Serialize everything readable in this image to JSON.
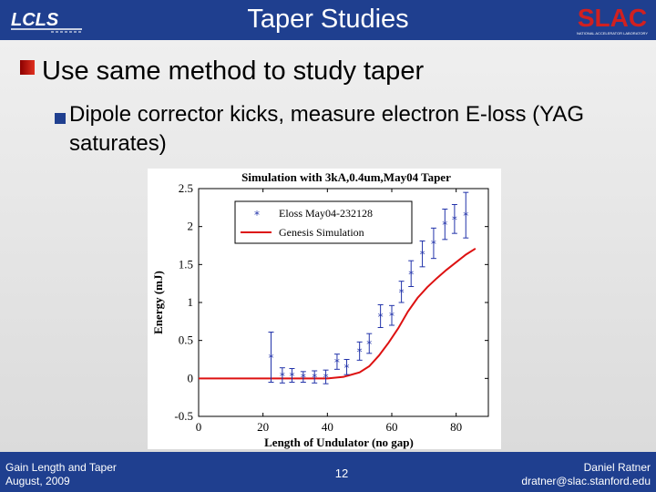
{
  "header": {
    "title": "Taper Studies",
    "logo_left": "LCLS",
    "logo_right": "SLAC",
    "logo_right_sub": "NATIONAL ACCELERATOR LABORATORY"
  },
  "body": {
    "bullet_main": "Use same method to study taper",
    "bullet_sub": "Dipole corrector kicks, measure electron E-loss (YAG saturates)"
  },
  "footer": {
    "left_line1": "Gain Length and Taper",
    "left_line2": "August, 2009",
    "page_number": "12",
    "right_line1": "Daniel Ratner",
    "right_line2": "dratner@slac.stanford.edu"
  },
  "colors": {
    "header": "#1f3f8f",
    "bullet_main": "#c0281a",
    "bullet_sub": "#1f3f8f",
    "series_data": "#2233aa",
    "series_sim": "#dd1111"
  },
  "chart_data": {
    "type": "scatter",
    "title": "Simulation with 3kA,0.4um,May04 Taper",
    "xlabel": "Length of Undulator (no gap)",
    "ylabel": "Energy (mJ)",
    "xlim": [
      0,
      90
    ],
    "ylim": [
      -0.5,
      2.5
    ],
    "xticks": [
      0,
      20,
      40,
      60,
      80
    ],
    "yticks": [
      -0.5,
      0,
      0.5,
      1,
      1.5,
      2,
      2.5
    ],
    "legend_position": "top-left",
    "grid": false,
    "series": [
      {
        "name": "Eloss May04-232128",
        "kind": "errorbar",
        "marker": "asterisk",
        "x": [
          22.5,
          26,
          29,
          32.5,
          36,
          39.5,
          43,
          46,
          50,
          53,
          56.5,
          60,
          63,
          66,
          69.5,
          73,
          76.5,
          79.5,
          83
        ],
        "y": [
          0.28,
          0.04,
          0.04,
          0.02,
          0.02,
          0.02,
          0.22,
          0.15,
          0.36,
          0.46,
          0.82,
          0.83,
          1.14,
          1.38,
          1.64,
          1.78,
          2.03,
          2.1,
          2.15
        ],
        "err": [
          0.33,
          0.1,
          0.09,
          0.07,
          0.08,
          0.09,
          0.1,
          0.1,
          0.12,
          0.13,
          0.15,
          0.13,
          0.14,
          0.17,
          0.17,
          0.2,
          0.2,
          0.19,
          0.3
        ]
      },
      {
        "name": "Genesis Simulation",
        "kind": "line",
        "x": [
          0,
          40,
          45,
          50,
          53,
          56,
          59,
          62,
          65,
          68,
          71,
          74,
          77,
          80,
          83,
          86
        ],
        "y": [
          0,
          0.0,
          0.02,
          0.08,
          0.16,
          0.3,
          0.47,
          0.66,
          0.88,
          1.06,
          1.2,
          1.32,
          1.43,
          1.53,
          1.63,
          1.71
        ]
      }
    ]
  }
}
